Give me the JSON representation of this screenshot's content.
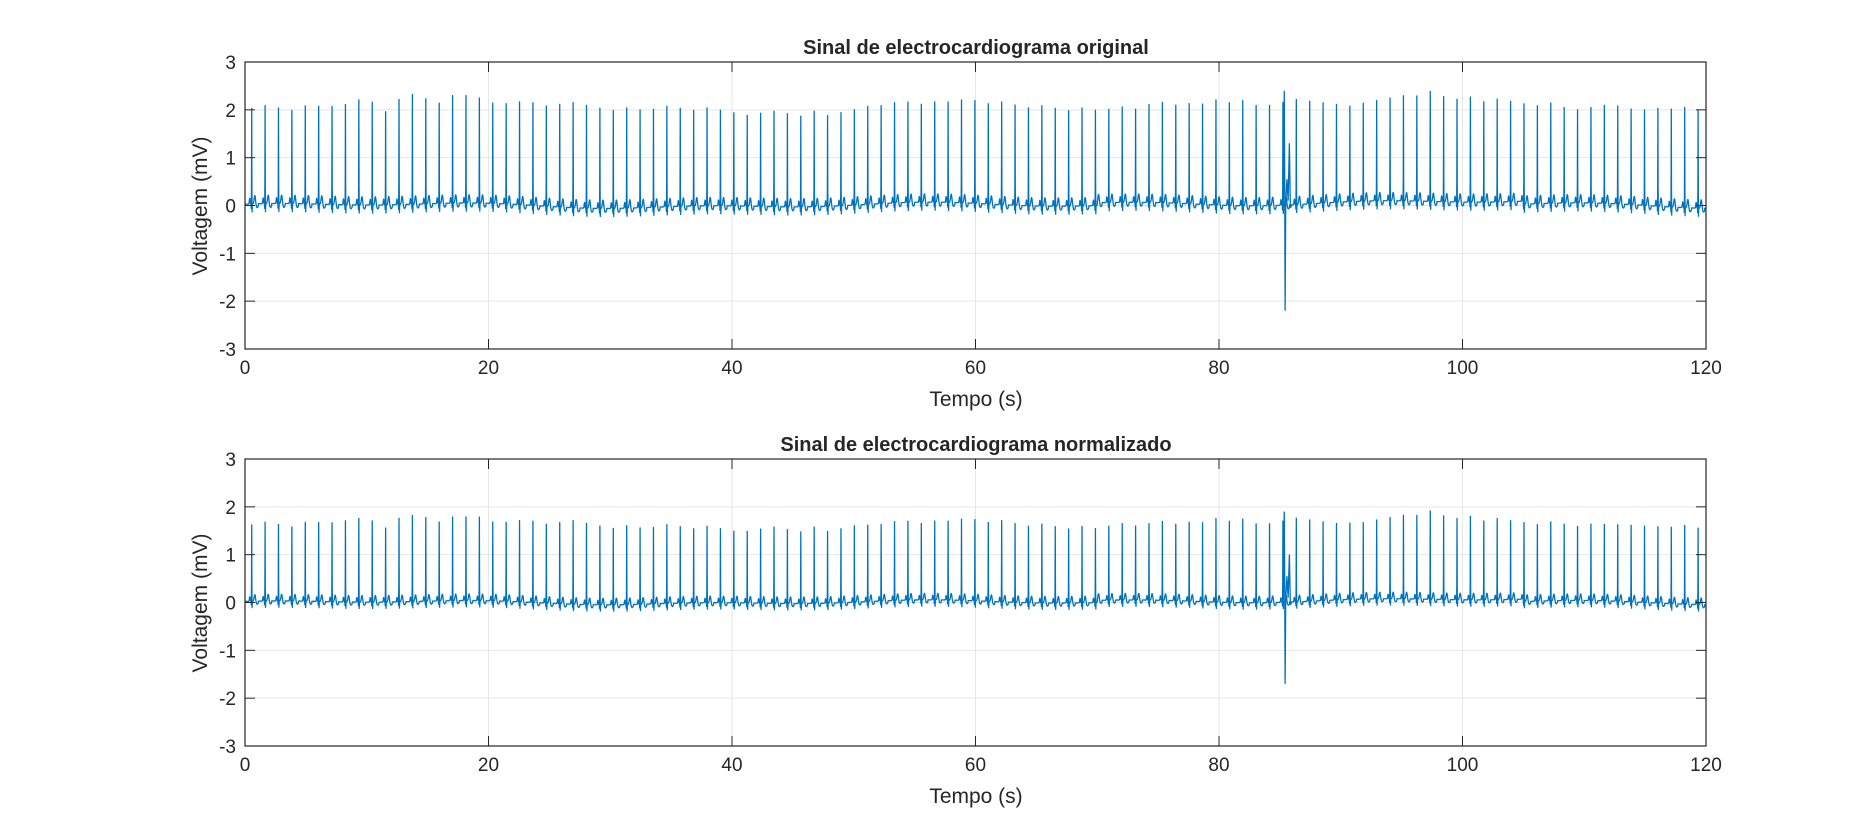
{
  "figure": {
    "background": "#ffffff",
    "line_color": "#0072BD",
    "grid_color": "#e6e6e6",
    "axis_color": "#262626"
  },
  "chart_data": [
    {
      "type": "line",
      "title": "Sinal de electrocardiograma original",
      "xlabel": "Tempo (s)",
      "ylabel": "Voltagem (mV)",
      "xlim": [
        0,
        120
      ],
      "ylim": [
        -3,
        3
      ],
      "xticks": [
        0,
        20,
        40,
        60,
        80,
        100,
        120
      ],
      "yticks": [
        -3,
        -2,
        -1,
        0,
        1,
        2,
        3
      ],
      "grid": true,
      "series": [
        {
          "baseline_mV": 0.0,
          "beat_interval_s": 1.1,
          "r_peaks_mV": [
            2.0,
            2.05,
            2.0,
            1.95,
            2.05,
            2.05,
            2.05,
            2.1,
            2.2,
            2.15,
            1.95,
            2.2,
            2.3,
            2.2,
            2.1,
            2.25,
            2.25,
            2.2,
            2.1,
            2.1,
            2.15,
            2.15,
            2.1,
            2.15,
            2.2,
            2.15,
            2.1,
            2.05,
            2.1,
            2.05,
            2.05,
            2.1,
            2.05,
            2.0,
            2.05,
            2.0,
            1.95,
            1.9,
            1.95,
            2.0,
            1.95,
            1.9,
            2.0,
            1.9,
            1.95,
            2.0,
            2.05,
            2.05,
            2.1,
            2.1,
            2.05,
            2.1,
            2.1,
            2.15,
            2.15,
            2.1,
            2.15,
            2.1,
            2.05,
            2.1,
            2.05,
            2.0,
            2.05,
            2.0,
            1.95,
            2.0,
            1.95,
            2.05,
            2.1,
            2.05,
            2.1,
            2.1,
            2.2,
            2.15,
            2.2,
            2.1,
            2.1,
            2.15,
            2.2,
            2.15,
            2.1,
            2.05,
            2.0,
            2.05,
            2.1,
            2.15,
            2.2,
            2.2,
            2.3,
            2.2,
            2.15,
            2.2,
            2.1,
            2.15,
            2.1,
            2.1,
            2.05,
            2.1,
            2.0,
            1.95,
            2.0,
            2.05,
            2.05,
            2.0,
            2.0,
            2.05,
            2.05,
            2.1,
            2.05
          ],
          "artifact": {
            "time_s": 85.4,
            "max_mV": 2.4,
            "min_mV": -2.2,
            "secondary_peak_mV": 1.3
          }
        }
      ]
    },
    {
      "type": "line",
      "title": "Sinal de electrocardiograma normalizado",
      "xlabel": "Tempo (s)",
      "ylabel": "Voltagem (mV)",
      "xlim": [
        0,
        120
      ],
      "ylim": [
        -3,
        3
      ],
      "xticks": [
        0,
        20,
        40,
        60,
        80,
        100,
        120
      ],
      "yticks": [
        -3,
        -2,
        -1,
        0,
        1,
        2,
        3
      ],
      "grid": true,
      "series": [
        {
          "baseline_mV": 0.0,
          "beat_interval_s": 1.1,
          "r_peaks_mV": [
            1.6,
            1.65,
            1.6,
            1.55,
            1.65,
            1.65,
            1.65,
            1.7,
            1.75,
            1.7,
            1.55,
            1.75,
            1.8,
            1.75,
            1.65,
            1.75,
            1.75,
            1.75,
            1.65,
            1.65,
            1.7,
            1.7,
            1.65,
            1.7,
            1.75,
            1.7,
            1.65,
            1.6,
            1.65,
            1.6,
            1.6,
            1.65,
            1.6,
            1.55,
            1.6,
            1.55,
            1.5,
            1.5,
            1.55,
            1.6,
            1.55,
            1.5,
            1.6,
            1.5,
            1.55,
            1.6,
            1.6,
            1.6,
            1.65,
            1.65,
            1.6,
            1.65,
            1.65,
            1.7,
            1.7,
            1.65,
            1.7,
            1.65,
            1.6,
            1.65,
            1.6,
            1.55,
            1.6,
            1.55,
            1.55,
            1.6,
            1.55,
            1.6,
            1.65,
            1.6,
            1.65,
            1.65,
            1.75,
            1.7,
            1.75,
            1.65,
            1.65,
            1.7,
            1.75,
            1.7,
            1.65,
            1.6,
            1.6,
            1.6,
            1.65,
            1.7,
            1.75,
            1.75,
            1.85,
            1.75,
            1.7,
            1.75,
            1.65,
            1.7,
            1.65,
            1.65,
            1.6,
            1.65,
            1.6,
            1.55,
            1.6,
            1.6,
            1.6,
            1.6,
            1.6,
            1.6,
            1.6,
            1.65,
            1.6
          ],
          "artifact": {
            "time_s": 85.4,
            "max_mV": 1.9,
            "min_mV": -1.7,
            "secondary_peak_mV": 1.0
          }
        }
      ]
    }
  ]
}
